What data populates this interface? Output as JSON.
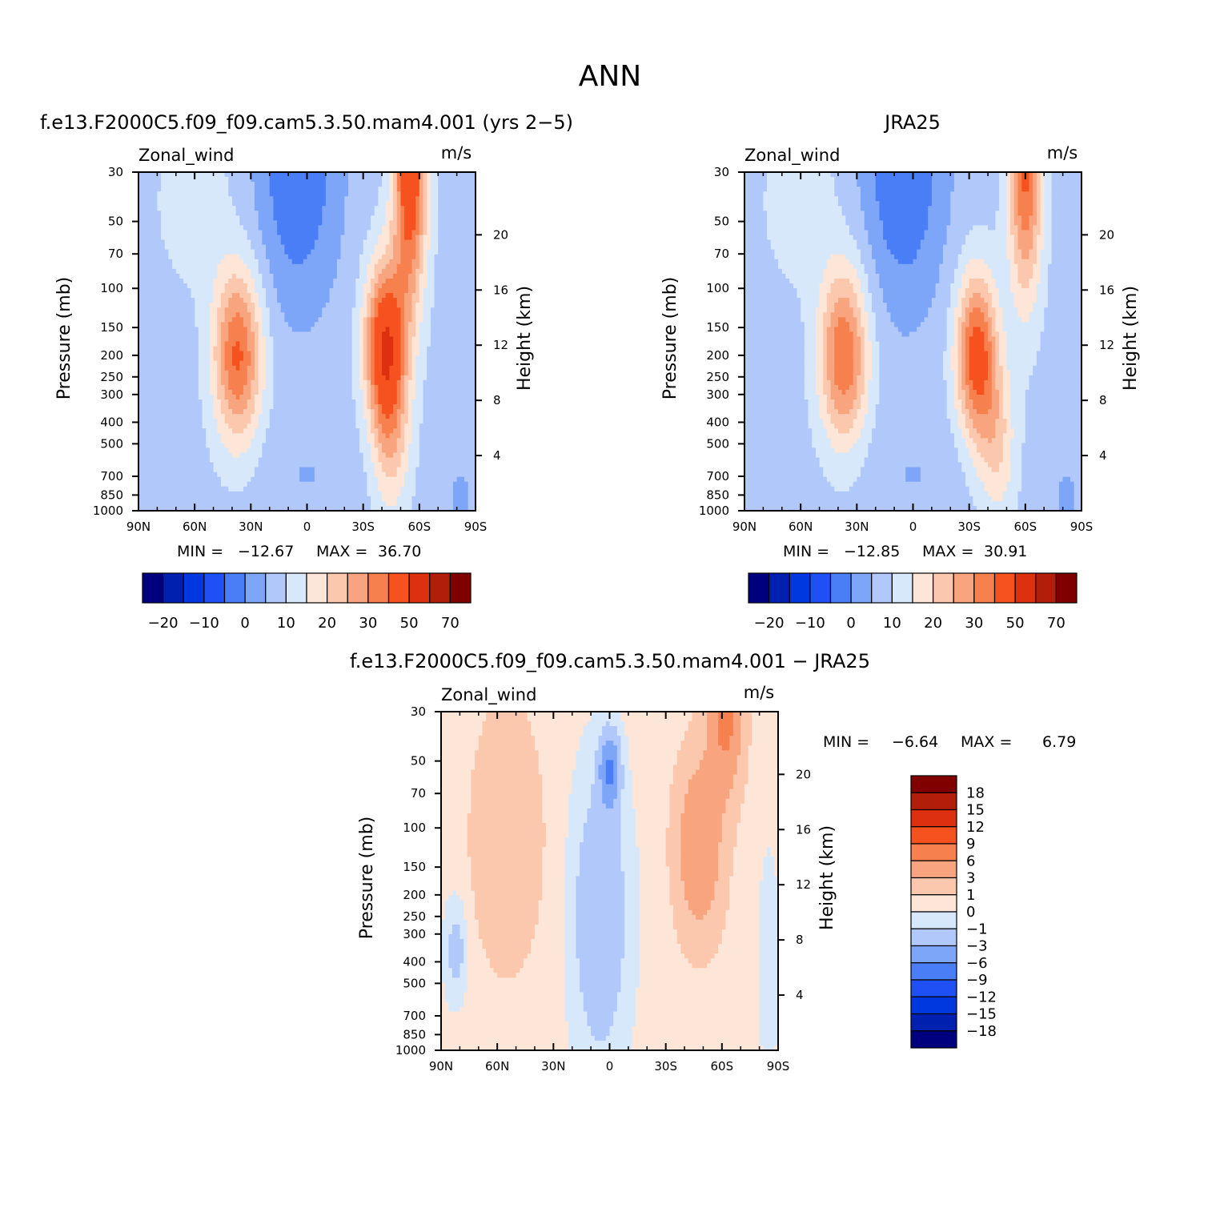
{
  "figure": {
    "title": "ANN"
  },
  "palette": {
    "colors": [
      "#00007f",
      "#0020b0",
      "#0038e0",
      "#1e50f5",
      "#4a7ef7",
      "#7ea6f8",
      "#b0c8fa",
      "#d8e8fb",
      "#fde6d7",
      "#fcc8ad",
      "#f8a47f",
      "#f7804f",
      "#f5521f",
      "#dd3010",
      "#b21e0a",
      "#800000"
    ]
  },
  "chart_data": [
    {
      "id": "model",
      "type": "heatmap",
      "title": "f.e13.F2000C5.f09_f09.cam5.3.50.mam4.001 (yrs 2−5)",
      "variable": "Zonal_wind",
      "units": "m/s",
      "xlabel": "",
      "ylabel": "Pressure (mb)",
      "ylabel_right": "Height (km)",
      "x_ticks": [
        "90N",
        "60N",
        "30N",
        "0",
        "30S",
        "60S",
        "90S"
      ],
      "xlim": [
        90,
        -90
      ],
      "y_ticks": [
        30,
        50,
        70,
        100,
        150,
        200,
        250,
        300,
        400,
        500,
        700,
        850,
        1000
      ],
      "ylim": [
        1000,
        30
      ],
      "height_ticks": [
        20,
        16,
        12,
        8,
        4
      ],
      "min_label": "MIN =",
      "min_value": "−12.67",
      "max_label": "MAX =",
      "max_value": "36.70",
      "levels": [
        -25,
        -20,
        -15,
        -10,
        -5,
        0,
        5,
        10,
        15,
        20,
        25,
        30,
        40,
        50,
        60,
        70
      ],
      "colorbar_labels": [
        "−20",
        "−10",
        "0",
        "10",
        "20",
        "30",
        "50",
        "70"
      ],
      "features": {
        "nh_jet_max": 28,
        "sh_jet_max": 36.7,
        "sh_strat_max": 34,
        "tropical_easterly": -12.67,
        "sh_jet_lat": -42,
        "sh_jet_hpa": 180,
        "sh_strat_lat": -55
      }
    },
    {
      "id": "obs",
      "type": "heatmap",
      "title": "JRA25",
      "variable": "Zonal_wind",
      "units": "m/s",
      "xlabel": "",
      "ylabel": "Pressure (mb)",
      "ylabel_right": "Height (km)",
      "x_ticks": [
        "90N",
        "60N",
        "30N",
        "0",
        "30S",
        "60S",
        "90S"
      ],
      "xlim": [
        90,
        -90
      ],
      "y_ticks": [
        30,
        50,
        70,
        100,
        150,
        200,
        250,
        300,
        400,
        500,
        700,
        850,
        1000
      ],
      "ylim": [
        1000,
        30
      ],
      "height_ticks": [
        20,
        16,
        12,
        8,
        4
      ],
      "min_label": "MIN =",
      "min_value": "−12.85",
      "max_label": "MAX =",
      "max_value": "30.91",
      "levels": [
        -25,
        -20,
        -15,
        -10,
        -5,
        0,
        5,
        10,
        15,
        20,
        25,
        30,
        40,
        50,
        60,
        70
      ],
      "colorbar_labels": [
        "−20",
        "−10",
        "0",
        "10",
        "20",
        "30",
        "50",
        "70"
      ],
      "features": {
        "nh_jet_max": 27,
        "sh_jet_max": 30.91,
        "sh_strat_max": 28,
        "tropical_easterly": -12.85,
        "sh_jet_lat": -34,
        "sh_jet_hpa": 200,
        "sh_strat_lat": -60
      }
    },
    {
      "id": "diff",
      "type": "heatmap",
      "title": "f.e13.F2000C5.f09_f09.cam5.3.50.mam4.001 − JRA25",
      "variable": "Zonal_wind",
      "units": "m/s",
      "xlabel": "",
      "ylabel": "Pressure (mb)",
      "ylabel_right": "Height (km)",
      "x_ticks": [
        "90N",
        "60N",
        "30N",
        "0",
        "30S",
        "60S",
        "90S"
      ],
      "xlim": [
        90,
        -90
      ],
      "y_ticks": [
        30,
        50,
        70,
        100,
        150,
        200,
        250,
        300,
        400,
        500,
        700,
        850,
        1000
      ],
      "ylim": [
        1000,
        30
      ],
      "height_ticks": [
        20,
        16,
        12,
        8,
        4
      ],
      "min_label": "MIN =",
      "min_value": "−6.64",
      "max_label": "MAX =",
      "max_value": "6.79",
      "levels": [
        -18,
        -15,
        -12,
        -9,
        -6,
        -3,
        -1,
        0,
        1,
        3,
        6,
        9,
        12,
        15,
        18
      ],
      "colorbar_labels": [
        "18",
        "15",
        "12",
        "9",
        "6",
        "3",
        "1",
        "0",
        "−1",
        "−3",
        "−6",
        "−9",
        "−12",
        "−15",
        "−18"
      ],
      "features": {
        "nh_pos_max": 2.5,
        "sh_pos_max": 5.5,
        "sh_strat_max": 6.79,
        "trop_neg": -6.64,
        "nh_neg": -2
      }
    }
  ]
}
